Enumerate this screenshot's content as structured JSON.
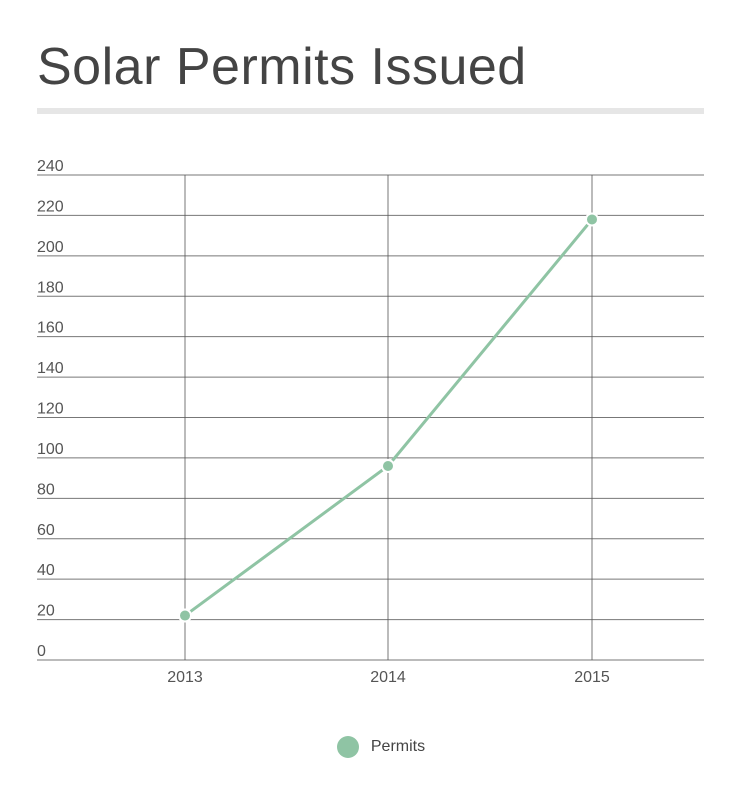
{
  "title": "Solar Permits Issued",
  "colors": {
    "series": "#8fc4a4",
    "grid": "#555555",
    "rule": "#e6e6e6",
    "text": "#444444"
  },
  "chart_data": {
    "type": "line",
    "title": "Solar Permits Issued",
    "xlabel": "",
    "ylabel": "",
    "categories": [
      "2013",
      "2014",
      "2015"
    ],
    "series": [
      {
        "name": "Permits",
        "values": [
          22,
          96,
          218
        ]
      }
    ],
    "ylim": [
      0,
      240
    ],
    "yticks": [
      "0",
      "20",
      "40",
      "60",
      "80",
      "100",
      "120",
      "140",
      "160",
      "180",
      "200",
      "220",
      "240"
    ],
    "grid": true,
    "legend_position": "bottom"
  }
}
